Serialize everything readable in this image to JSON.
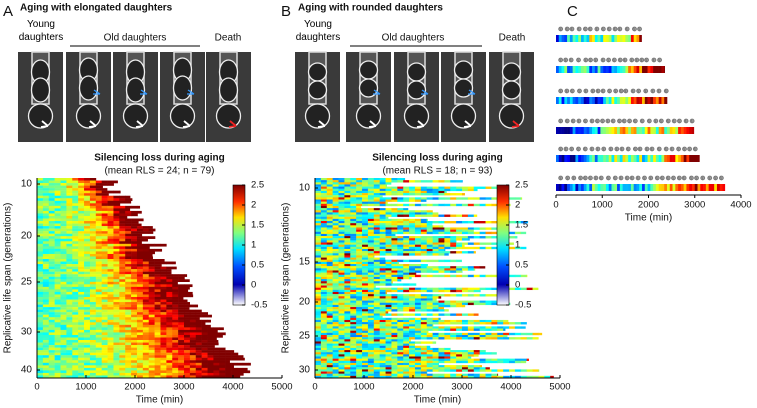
{
  "panels": [
    {
      "letter": "A",
      "title": "Aging with elongated daughters",
      "image_labels": [
        "Young daughters",
        "Old daughters",
        "Death"
      ],
      "subtitle": "Silencing loss during aging",
      "stats": "(mean RLS = 24; n = 79)",
      "y_label": "Replicative life span (generations)",
      "x_label": "Time (min)",
      "xlim": [
        0,
        5000
      ],
      "xticks": [
        0,
        1000,
        2000,
        3000,
        4000,
        5000
      ],
      "yticks": [
        10,
        20,
        25,
        30,
        40
      ],
      "clim": [
        -0.5,
        2.5
      ],
      "cticks": [
        2.5,
        2,
        1.5,
        1,
        0.5,
        0,
        -0.5
      ]
    },
    {
      "letter": "B",
      "title": "Aging with rounded daughters",
      "image_labels": [
        "Young daughters",
        "Old daughters",
        "Death"
      ],
      "subtitle": "Silencing loss during aging",
      "stats": "(mean RLS = 18; n = 93)",
      "y_label": "Replicative life span (generations)",
      "x_label": "Time (min)",
      "xlim": [
        0,
        5000
      ],
      "xticks": [
        0,
        1000,
        2000,
        3000,
        4000,
        5000
      ],
      "yticks": [
        10,
        15,
        20,
        25,
        30
      ],
      "clim": [
        -0.5,
        2.5
      ],
      "cticks": [
        2.5,
        2,
        1.5,
        1,
        0.5,
        0,
        -0.5
      ]
    }
  ],
  "panel_c": {
    "letter": "C",
    "x_label": "Time (min)",
    "xlim": [
      0,
      4000
    ],
    "xticks": [
      0,
      1000,
      2000,
      3000,
      4000
    ],
    "lifespans": [
      1850,
      2350,
      2400,
      2980,
      3100,
      3650
    ]
  }
}
